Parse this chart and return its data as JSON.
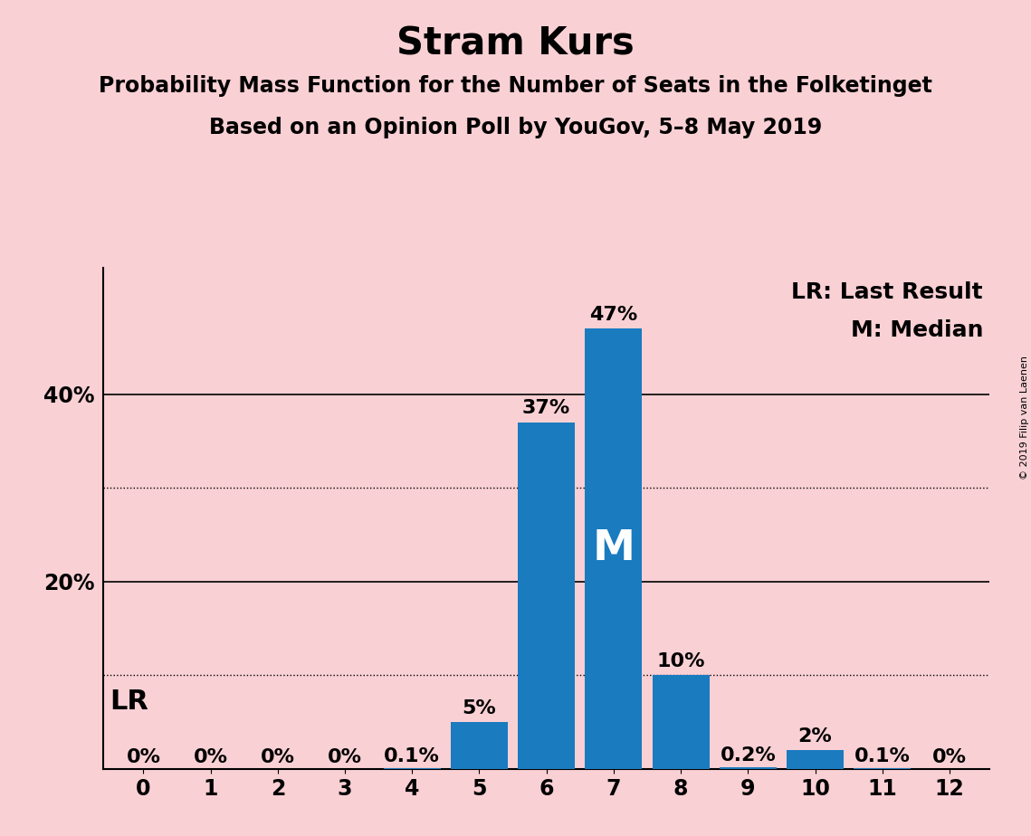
{
  "title": "Stram Kurs",
  "subtitle1": "Probability Mass Function for the Number of Seats in the Folketinget",
  "subtitle2": "Based on an Opinion Poll by YouGov, 5–8 May 2019",
  "copyright": "© 2019 Filip van Laenen",
  "categories": [
    0,
    1,
    2,
    3,
    4,
    5,
    6,
    7,
    8,
    9,
    10,
    11,
    12
  ],
  "values": [
    0.0,
    0.0,
    0.0,
    0.0,
    0.001,
    0.05,
    0.37,
    0.47,
    0.1,
    0.002,
    0.02,
    0.001,
    0.0
  ],
  "labels": [
    "0%",
    "0%",
    "0%",
    "0%",
    "0.1%",
    "5%",
    "37%",
    "47%",
    "10%",
    "0.2%",
    "2%",
    "0.1%",
    "0%"
  ],
  "bar_color": "#1a7bbf",
  "background_color": "#f9d0d4",
  "yticks": [
    0.0,
    0.2,
    0.4
  ],
  "ytick_labels": [
    "",
    "20%",
    "40%"
  ],
  "solid_yticks": [
    0.0,
    0.2,
    0.4
  ],
  "dotted_yticks": [
    0.1,
    0.3
  ],
  "ylim": [
    0,
    0.535
  ],
  "median_seat": 7,
  "median_label": "M",
  "legend_text1": "LR: Last Result",
  "legend_text2": "M: Median",
  "title_fontsize": 30,
  "subtitle_fontsize": 17,
  "label_fontsize": 16,
  "tick_fontsize": 17,
  "legend_fontsize": 18,
  "lr_fontsize": 22,
  "copyright_fontsize": 8
}
